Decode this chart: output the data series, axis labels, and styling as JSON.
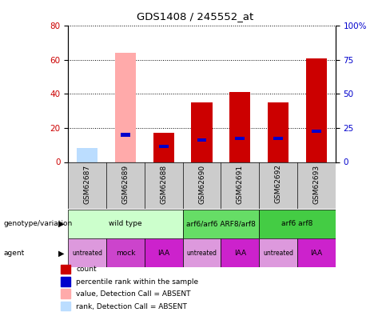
{
  "title": "GDS1408 / 245552_at",
  "samples": [
    "GSM62687",
    "GSM62689",
    "GSM62688",
    "GSM62690",
    "GSM62691",
    "GSM62692",
    "GSM62693"
  ],
  "count_values": [
    0,
    0,
    17,
    35,
    41,
    35,
    61
  ],
  "percentile_values": [
    0,
    17,
    10,
    14,
    15,
    15,
    19
  ],
  "absent_value_bars": [
    8,
    64,
    0,
    0,
    0,
    0,
    0
  ],
  "absent_rank_bars": [
    8,
    0,
    0,
    0,
    0,
    0,
    0
  ],
  "ylim": [
    0,
    80
  ],
  "yticks_left": [
    0,
    20,
    40,
    60,
    80
  ],
  "yticks_right": [
    0,
    25,
    50,
    75,
    100
  ],
  "color_count": "#cc0000",
  "color_percentile": "#0000cc",
  "color_absent_value": "#ffaaaa",
  "color_absent_rank": "#bbddff",
  "genotype_groups": [
    {
      "label": "wild type",
      "start": 0,
      "end": 3,
      "color": "#ccffcc"
    },
    {
      "label": "arf6/arf6 ARF8/arf8",
      "start": 3,
      "end": 5,
      "color": "#66dd66"
    },
    {
      "label": "arf6 arf8",
      "start": 5,
      "end": 7,
      "color": "#44cc44"
    }
  ],
  "agent_groups": [
    {
      "label": "untreated",
      "start": 0,
      "end": 1,
      "color": "#dd99dd"
    },
    {
      "label": "mock",
      "start": 1,
      "end": 2,
      "color": "#cc44cc"
    },
    {
      "label": "IAA",
      "start": 2,
      "end": 3,
      "color": "#cc22cc"
    },
    {
      "label": "untreated",
      "start": 3,
      "end": 4,
      "color": "#dd99dd"
    },
    {
      "label": "IAA",
      "start": 4,
      "end": 5,
      "color": "#cc22cc"
    },
    {
      "label": "untreated",
      "start": 5,
      "end": 6,
      "color": "#dd99dd"
    },
    {
      "label": "IAA",
      "start": 6,
      "end": 7,
      "color": "#cc22cc"
    }
  ],
  "legend_items": [
    {
      "label": "count",
      "color": "#cc0000"
    },
    {
      "label": "percentile rank within the sample",
      "color": "#0000cc"
    },
    {
      "label": "value, Detection Call = ABSENT",
      "color": "#ffaaaa"
    },
    {
      "label": "rank, Detection Call = ABSENT",
      "color": "#bbddff"
    }
  ],
  "bg_color": "#ffffff",
  "axis_label_color_left": "#cc0000",
  "axis_label_color_right": "#0000cc",
  "sample_box_color": "#cccccc"
}
